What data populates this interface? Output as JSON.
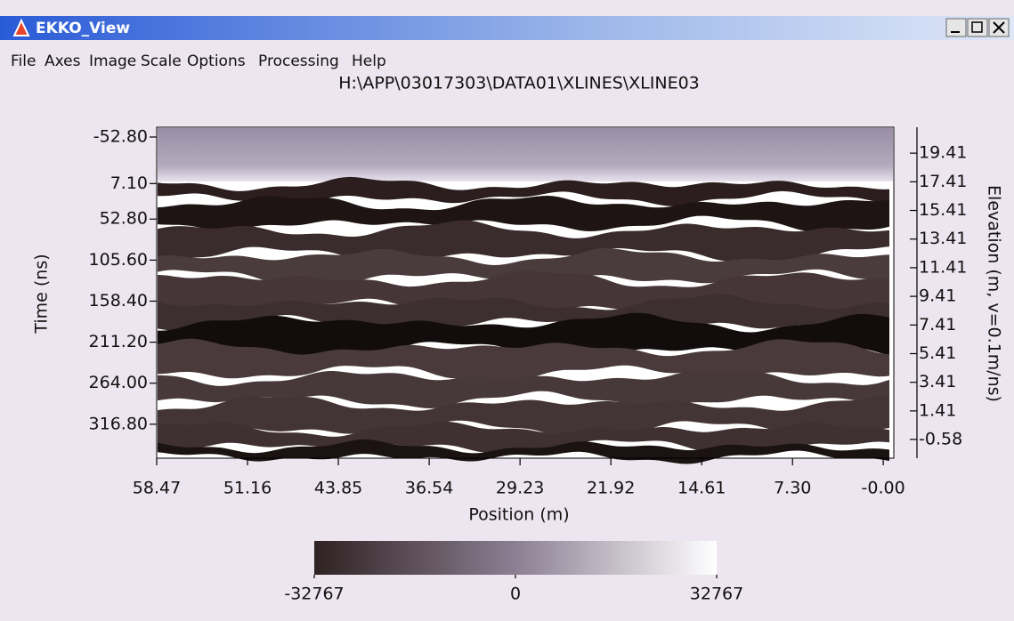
{
  "window": {
    "title": "EKKO_View",
    "menu": [
      "File",
      "Axes",
      "Image",
      "Scale",
      "Options",
      "Processing",
      "Help"
    ]
  },
  "chart_data": {
    "type": "image",
    "title": "H:\\APP\\03017303\\DATA01\\XLINES\\XLINE03",
    "xlabel": "Position (m)",
    "ylabel": "Time (ns)",
    "y2label": "Elevation (m, v=0.1m/ns)",
    "xlim": [
      58.47,
      -0.85
    ],
    "xticks": [
      58.47,
      51.16,
      43.85,
      36.54,
      29.23,
      21.92,
      14.61,
      {
        "value": 7.3,
        "label": "7.30"
      },
      {
        "value": 0,
        "label": "-0.00"
      }
    ],
    "ylim": [
      -65.4,
      360.5
    ],
    "yticks": [
      {
        "value": -52.8,
        "label": "-52.80"
      },
      {
        "value": 7.1,
        "label": "7.10"
      },
      {
        "value": 52.8,
        "label": "52.80"
      },
      {
        "value": 105.6,
        "label": "105.60"
      },
      {
        "value": 158.4,
        "label": "158.40"
      },
      {
        "value": 211.2,
        "label": "211.20"
      },
      {
        "value": 264,
        "label": "264.00"
      },
      {
        "value": 316.8,
        "label": "316.80"
      }
    ],
    "y2lim": [
      -1.89,
      21.22
    ],
    "y2ticks": [
      19.41,
      17.41,
      15.41,
      13.41,
      11.41,
      9.41,
      7.41,
      5.41,
      3.41,
      1.41,
      -0.58
    ],
    "colorbar": {
      "lim": [
        -32767,
        32767
      ],
      "ticks": [
        -32767,
        0,
        32767
      ]
    }
  }
}
